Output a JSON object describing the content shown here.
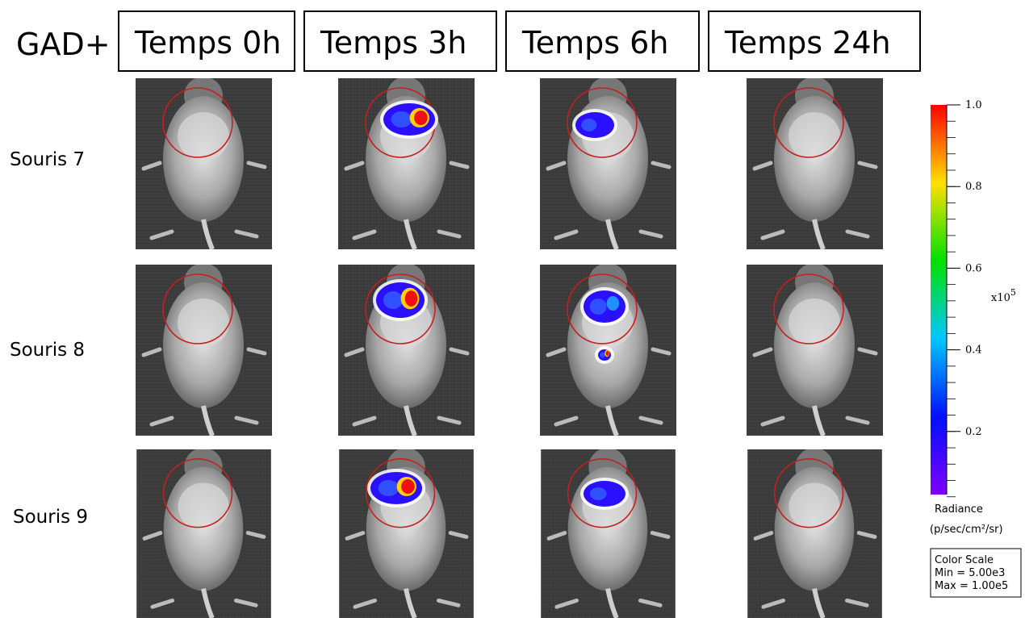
{
  "header": {
    "group": "GAD+",
    "timepoints": [
      "Temps 0h",
      "Temps 3h",
      "Temps 6h",
      "Temps 24h"
    ]
  },
  "rows": [
    "Souris 7",
    "Souris 8",
    "Souris 9"
  ],
  "color_scale": {
    "ticks": [
      "1.0",
      "0.8",
      "0.6",
      "0.4",
      "0.2"
    ],
    "multiplier": {
      "base": "x10",
      "exponent": "5"
    },
    "unit_label": "Radiance",
    "unit": "(p/sec/cm²/sr)",
    "legend": {
      "title": "Color Scale",
      "min": "Min = 5.00e3",
      "max": "Max = 1.00e5"
    }
  }
}
